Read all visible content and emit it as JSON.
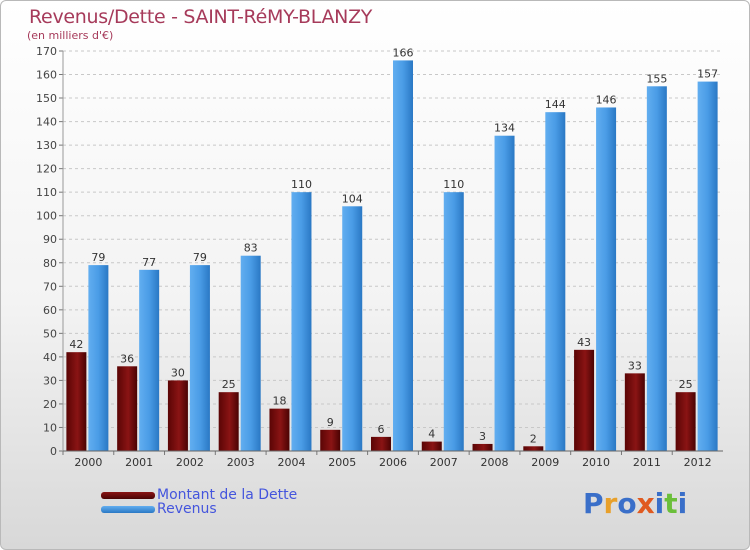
{
  "chart_data": {
    "type": "bar",
    "title": "Revenus/Dette - SAINT-RéMY-BLANZY",
    "subtitle": "(en milliers d'€)",
    "xlabel": "",
    "ylabel": "",
    "ylim": [
      0,
      170
    ],
    "yticks": [
      0,
      10,
      20,
      30,
      40,
      50,
      60,
      70,
      80,
      90,
      100,
      110,
      120,
      130,
      140,
      150,
      160,
      170
    ],
    "grid": true,
    "legend_position": "bottom-left",
    "categories": [
      "2000",
      "2001",
      "2002",
      "2003",
      "2004",
      "2005",
      "2006",
      "2007",
      "2008",
      "2009",
      "2010",
      "2011",
      "2012"
    ],
    "series": [
      {
        "name": "Montant de la Dette",
        "color": "#7a0a0a",
        "values": [
          42,
          36,
          30,
          25,
          18,
          9,
          6,
          4,
          3,
          2,
          43,
          33,
          25
        ]
      },
      {
        "name": "Revenus",
        "color": "#3d8fdc",
        "values": [
          79,
          77,
          79,
          83,
          110,
          104,
          166,
          110,
          134,
          144,
          146,
          155,
          157
        ]
      }
    ]
  },
  "logo": {
    "text": "Proxiti",
    "colors": [
      "#3a6fc9",
      "#e8a02a",
      "#3a6fc9",
      "#e05a20",
      "#3a6fc9",
      "#6bbf3a",
      "#3a6fc9"
    ]
  }
}
